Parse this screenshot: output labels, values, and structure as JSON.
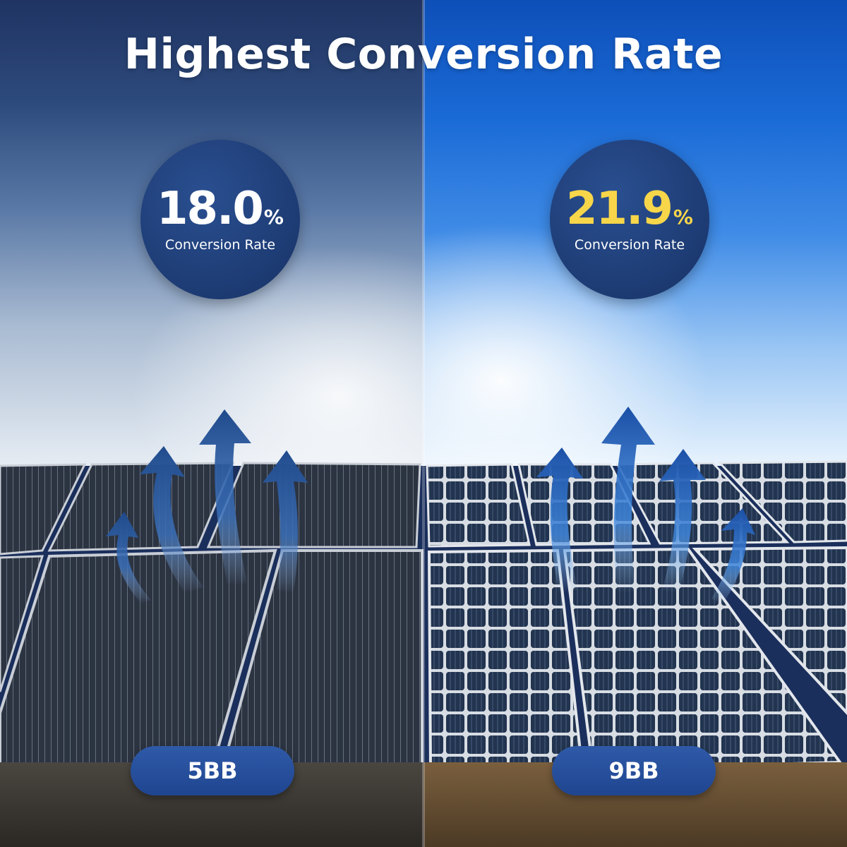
{
  "title": "Highest Conversion Rate",
  "left": {
    "rate_value": "18.0",
    "rate_unit": "%",
    "rate_caption": "Conversion Rate",
    "busbar_label": "5BB"
  },
  "right": {
    "rate_value": "21.9",
    "rate_unit": "%",
    "rate_caption": "Conversion Rate",
    "busbar_label": "9BB",
    "highlight_color": "#f7d64a"
  },
  "colors": {
    "circle_navy": "#1d3b73",
    "pill_blue": "#2f5aa8",
    "arrow_blue": "#2a5fb3"
  }
}
